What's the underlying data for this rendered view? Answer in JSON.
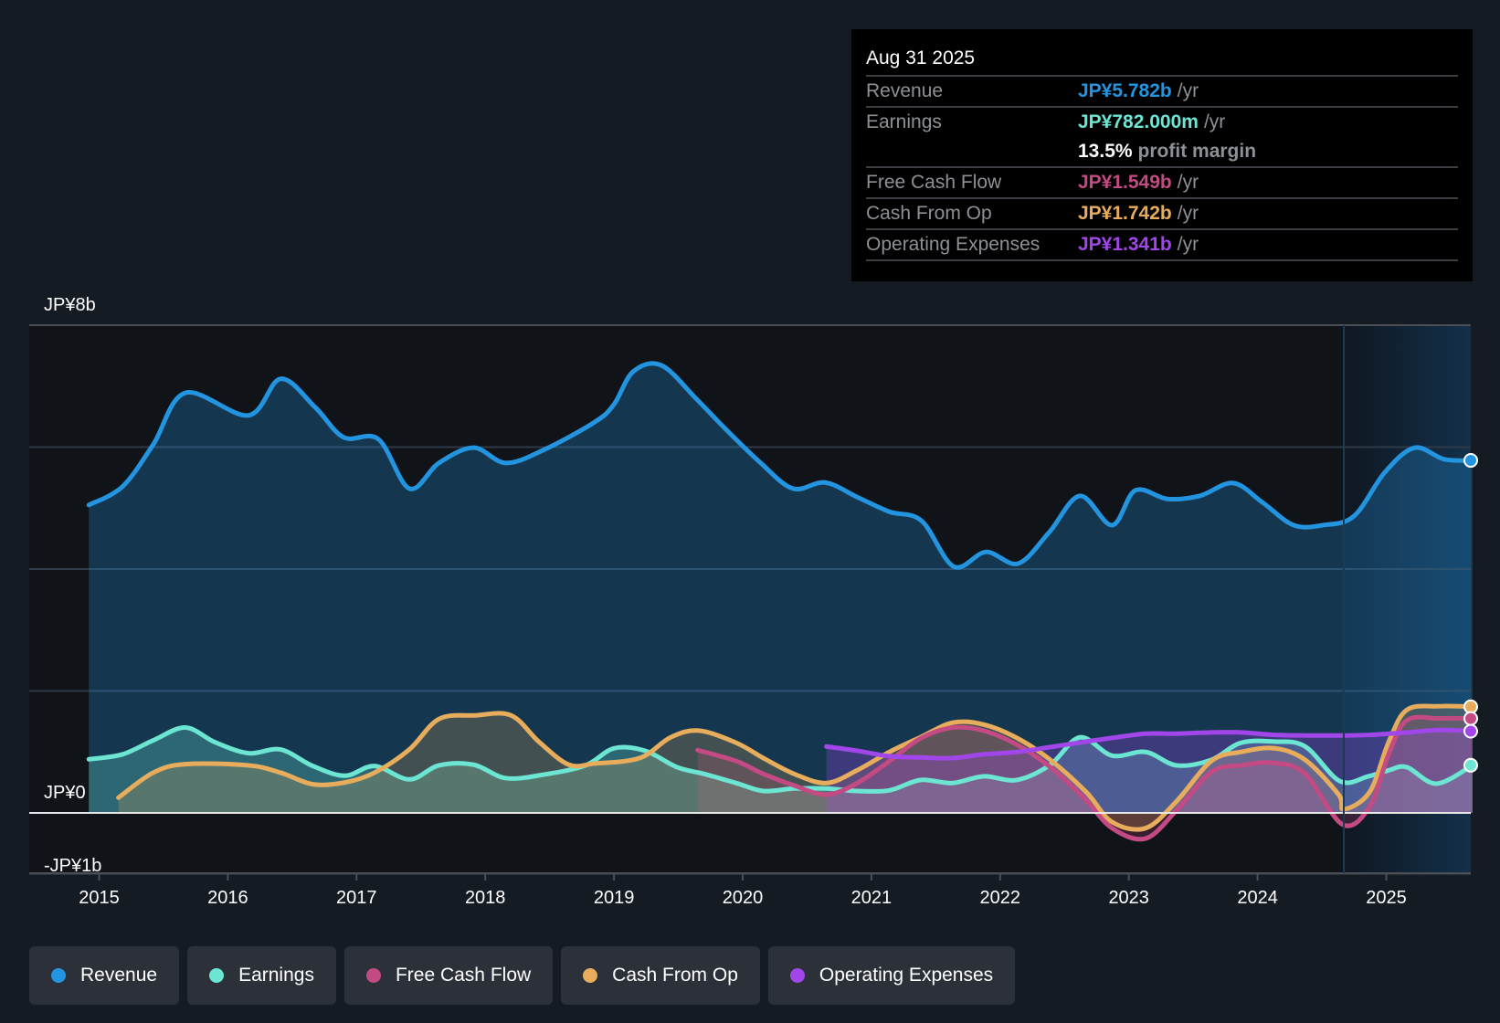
{
  "tooltip": {
    "date": "Aug 31 2025",
    "rows": [
      {
        "label": "Revenue",
        "value": "JP¥5.782b",
        "unit": "/yr",
        "color": "#2394df"
      },
      {
        "label": "Earnings",
        "value": "JP¥782.000m",
        "unit": "/yr",
        "color": "#6ce5d3"
      },
      {
        "label": "",
        "margin_value": "13.5%",
        "margin_label": "profit margin"
      },
      {
        "label": "Free Cash Flow",
        "value": "JP¥1.549b",
        "unit": "/yr",
        "color": "#c34a83"
      },
      {
        "label": "Cash From Op",
        "value": "JP¥1.742b",
        "unit": "/yr",
        "color": "#e8ad5c"
      },
      {
        "label": "Operating Expenses",
        "value": "JP¥1.341b",
        "unit": "/yr",
        "color": "#a146e8"
      }
    ]
  },
  "legend": [
    {
      "label": "Revenue",
      "color": "#2394df"
    },
    {
      "label": "Earnings",
      "color": "#6ce5d3"
    },
    {
      "label": "Free Cash Flow",
      "color": "#c34a83"
    },
    {
      "label": "Cash From Op",
      "color": "#e8ad5c"
    },
    {
      "label": "Operating Expenses",
      "color": "#a146e8"
    }
  ],
  "chart_data": {
    "type": "area",
    "title": "",
    "xlabel": "",
    "ylabel": "",
    "currency": "JP¥",
    "units": "billions",
    "ylim": [
      -1,
      8
    ],
    "xlim": [
      2014.5,
      2025.67
    ],
    "y_tick_labels": [
      {
        "value": 8,
        "label": "JP¥8b"
      },
      {
        "value": 0,
        "label": "JP¥0"
      },
      {
        "value": -1,
        "label": "-JP¥1b"
      }
    ],
    "y_gridlines": [
      8,
      6,
      4,
      2,
      0,
      -1
    ],
    "x_ticks": [
      2015,
      2016,
      2017,
      2018,
      2019,
      2020,
      2021,
      2022,
      2023,
      2024,
      2025
    ],
    "x_tick_labels": [
      "2015",
      "2016",
      "2017",
      "2018",
      "2019",
      "2020",
      "2021",
      "2022",
      "2023",
      "2024",
      "2025"
    ],
    "highlight_from": 2024.67,
    "grid": true,
    "legend_position": "bottom-left",
    "series": [
      {
        "name": "Revenue",
        "color": "#2394df",
        "x": [
          2014.92,
          2015.18,
          2015.42,
          2015.67,
          2016.16,
          2016.41,
          2016.68,
          2016.9,
          2017.17,
          2017.41,
          2017.64,
          2017.91,
          2018.16,
          2018.46,
          2018.85,
          2019.0,
          2019.15,
          2019.37,
          2019.64,
          2019.87,
          2020.14,
          2020.39,
          2020.64,
          2020.89,
          2021.14,
          2021.39,
          2021.64,
          2021.89,
          2022.14,
          2022.38,
          2022.62,
          2022.87,
          2023.05,
          2023.3,
          2023.55,
          2023.81,
          2024.04,
          2024.28,
          2024.51,
          2024.75,
          2024.99,
          2025.22,
          2025.45,
          2025.67
        ],
        "values": [
          5.05,
          5.35,
          6.04,
          6.89,
          6.52,
          7.12,
          6.65,
          6.16,
          6.13,
          5.32,
          5.74,
          5.99,
          5.74,
          5.96,
          6.41,
          6.7,
          7.24,
          7.34,
          6.79,
          6.29,
          5.74,
          5.32,
          5.42,
          5.18,
          4.94,
          4.79,
          4.04,
          4.28,
          4.09,
          4.6,
          5.2,
          4.72,
          5.29,
          5.15,
          5.2,
          5.41,
          5.09,
          4.72,
          4.72,
          4.87,
          5.59,
          5.99,
          5.8,
          5.782
        ]
      },
      {
        "name": "Earnings",
        "color": "#6ce5d3",
        "x": [
          2014.92,
          2015.18,
          2015.42,
          2015.67,
          2015.9,
          2016.16,
          2016.41,
          2016.66,
          2016.91,
          2017.14,
          2017.41,
          2017.64,
          2017.91,
          2018.16,
          2018.46,
          2018.78,
          2019.0,
          2019.24,
          2019.49,
          2019.7,
          2019.95,
          2020.16,
          2020.4,
          2020.65,
          2020.89,
          2021.14,
          2021.38,
          2021.63,
          2021.87,
          2022.13,
          2022.39,
          2022.62,
          2022.87,
          2023.13,
          2023.37,
          2023.64,
          2023.87,
          2024.13,
          2024.37,
          2024.64,
          2024.86,
          2025.02,
          2025.16,
          2025.39,
          2025.67
        ],
        "values": [
          0.88,
          0.96,
          1.19,
          1.4,
          1.16,
          0.98,
          1.04,
          0.77,
          0.61,
          0.77,
          0.55,
          0.78,
          0.79,
          0.57,
          0.63,
          0.78,
          1.06,
          1.02,
          0.75,
          0.64,
          0.49,
          0.36,
          0.4,
          0.4,
          0.36,
          0.37,
          0.54,
          0.49,
          0.6,
          0.54,
          0.79,
          1.24,
          0.94,
          1.0,
          0.78,
          0.87,
          1.15,
          1.17,
          1.09,
          0.52,
          0.6,
          0.7,
          0.75,
          0.48,
          0.782
        ]
      },
      {
        "name": "Free Cash Flow",
        "color": "#c34a83",
        "x": [
          2019.65,
          2019.95,
          2020.16,
          2020.4,
          2020.65,
          2020.89,
          2021.14,
          2021.38,
          2021.63,
          2021.87,
          2022.13,
          2022.39,
          2022.65,
          2022.87,
          2023.13,
          2023.37,
          2023.64,
          2023.87,
          2024.13,
          2024.37,
          2024.66,
          2024.87,
          2025.02,
          2025.16,
          2025.41,
          2025.67
        ],
        "values": [
          1.03,
          0.85,
          0.64,
          0.45,
          0.3,
          0.49,
          0.85,
          1.22,
          1.4,
          1.35,
          1.12,
          0.75,
          0.25,
          -0.25,
          -0.42,
          0.04,
          0.67,
          0.78,
          0.82,
          0.64,
          -0.19,
          0.1,
          0.97,
          1.52,
          1.55,
          1.549
        ]
      },
      {
        "name": "Cash From Op",
        "color": "#e8ad5c",
        "x": [
          2015.15,
          2015.42,
          2015.67,
          2016.16,
          2016.41,
          2016.66,
          2016.91,
          2017.14,
          2017.41,
          2017.64,
          2017.92,
          2018.2,
          2018.42,
          2018.65,
          2018.85,
          2019.2,
          2019.44,
          2019.66,
          2019.95,
          2020.16,
          2020.4,
          2020.65,
          2020.89,
          2021.14,
          2021.38,
          2021.63,
          2021.87,
          2022.13,
          2022.39,
          2022.67,
          2022.87,
          2023.13,
          2023.37,
          2023.64,
          2023.87,
          2024.13,
          2024.37,
          2024.63,
          2024.67,
          2024.87,
          2025.02,
          2025.16,
          2025.41,
          2025.67
        ],
        "values": [
          0.25,
          0.66,
          0.8,
          0.78,
          0.66,
          0.47,
          0.5,
          0.66,
          1.04,
          1.54,
          1.6,
          1.6,
          1.16,
          0.79,
          0.81,
          0.9,
          1.24,
          1.35,
          1.15,
          0.9,
          0.64,
          0.49,
          0.7,
          1.0,
          1.24,
          1.48,
          1.45,
          1.23,
          0.87,
          0.34,
          -0.15,
          -0.25,
          0.19,
          0.85,
          1.0,
          1.06,
          0.87,
          0.3,
          0.06,
          0.34,
          1.17,
          1.69,
          1.75,
          1.742
        ]
      },
      {
        "name": "Operating Expenses",
        "color": "#a146e8",
        "x": [
          2020.65,
          2020.89,
          2021.14,
          2021.38,
          2021.63,
          2021.87,
          2022.13,
          2022.39,
          2022.67,
          2022.87,
          2023.13,
          2023.37,
          2023.64,
          2023.87,
          2024.13,
          2024.37,
          2024.67,
          2024.87,
          2025.16,
          2025.41,
          2025.67
        ],
        "values": [
          1.09,
          1.02,
          0.93,
          0.91,
          0.9,
          0.96,
          1.0,
          1.08,
          1.17,
          1.23,
          1.3,
          1.3,
          1.32,
          1.32,
          1.28,
          1.27,
          1.27,
          1.28,
          1.32,
          1.36,
          1.341
        ]
      }
    ]
  }
}
